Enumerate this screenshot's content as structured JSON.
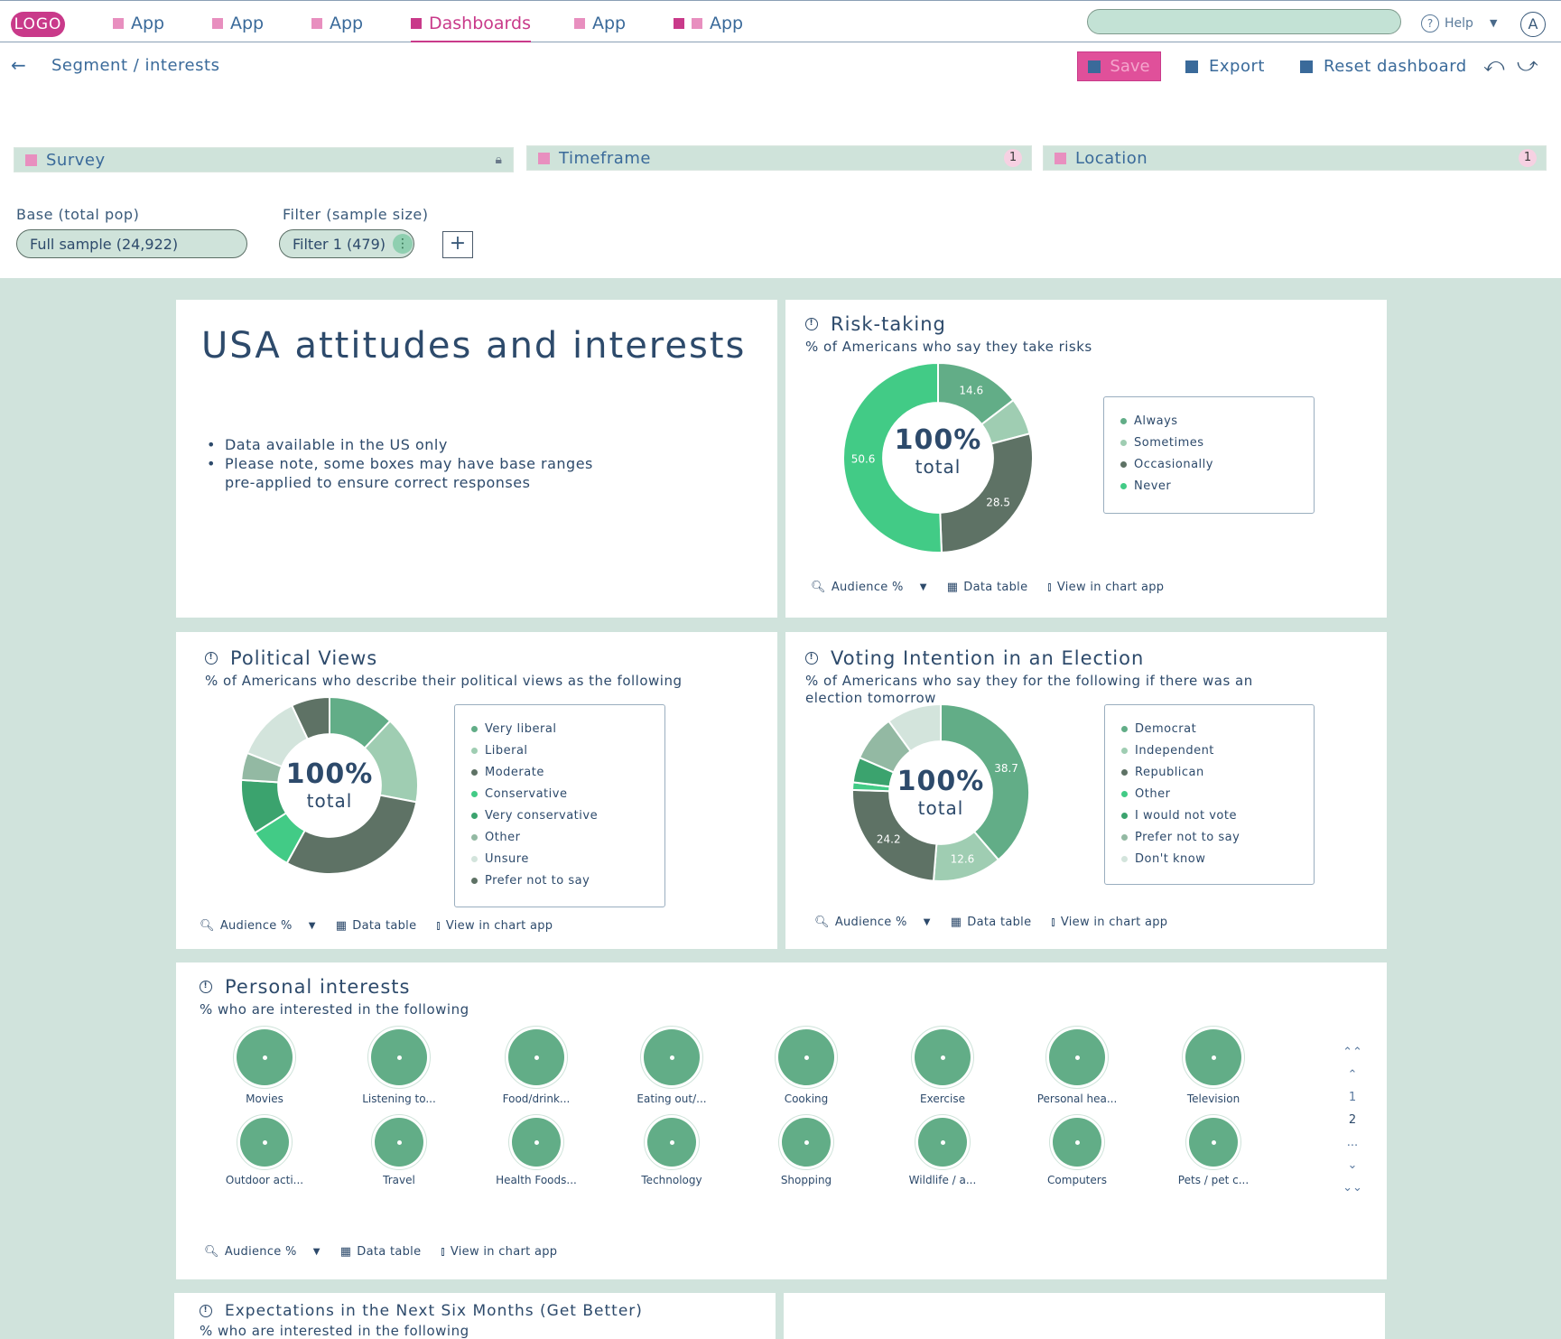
{
  "nav": {
    "logo": "LOGO",
    "items": [
      {
        "label": "App",
        "active": false
      },
      {
        "label": "App",
        "active": false
      },
      {
        "label": "App",
        "active": false
      },
      {
        "label": "Dashboards",
        "active": true
      },
      {
        "label": "App",
        "active": false
      },
      {
        "label": "App",
        "active": false
      }
    ],
    "help": "Help",
    "avatar": "A"
  },
  "header": {
    "breadcrumb": "Segment / interests",
    "save": "Save",
    "export": "Export",
    "reset": "Reset dashboard"
  },
  "filters": {
    "survey": "Survey",
    "timeframe": "Timeframe",
    "timeframe_count": "1",
    "location": "Location",
    "location_count": "1",
    "base_label": "Base (total pop)",
    "base_value": "Full sample (24,922)",
    "filter_label": "Filter (sample size)",
    "filter_value": "Filter 1 (479)",
    "add": "+"
  },
  "intro": {
    "title": "USA attitudes and interests",
    "bullets": [
      "Data available in the US only",
      "Please note, some boxes may have base ranges pre-applied to ensure correct responses"
    ]
  },
  "footer_labels": {
    "audience": "Audience %",
    "data_table": "Data table",
    "chart_app": "View in chart app"
  },
  "donut_center": {
    "big": "100%",
    "small": "total"
  },
  "colors": {
    "accent": "#c93a8a",
    "canvas": "#d0e3dc",
    "green_mid": "#62ad87",
    "green_bright": "#42cb86",
    "green_light": "#9fcdb2",
    "gray_dark": "#5e7265",
    "gray_light": "#d3e4dc"
  },
  "chart_data": [
    {
      "type": "pie",
      "title": "Risk-taking",
      "subtitle": "% of Americans who say they take risks",
      "categories": [
        "Always",
        "Sometimes",
        "Occasionally",
        "Never"
      ],
      "values": [
        14.6,
        6.3,
        28.5,
        50.6
      ],
      "labels": [
        "14.6",
        "",
        "28.5",
        "50.6"
      ],
      "colors": [
        "#62ad87",
        "#9fcdb2",
        "#5e7265",
        "#42cb86"
      ]
    },
    {
      "type": "pie",
      "title": "Political Views",
      "subtitle": "% of Americans who describe their political views as the following",
      "categories": [
        "Very liberal",
        "Liberal",
        "Moderate",
        "Conservative",
        "Very conservative",
        "Other",
        "Unsure",
        "Prefer not to say"
      ],
      "values": [
        12,
        16,
        30,
        8,
        10,
        5,
        12,
        7
      ],
      "labels": [
        "",
        "",
        "",
        "",
        "",
        "",
        "",
        ""
      ],
      "colors": [
        "#62ad87",
        "#9fcdb2",
        "#5e7265",
        "#42cb86",
        "#3ba36e",
        "#93b9a3",
        "#d3e4dc",
        "#5e7265"
      ]
    },
    {
      "type": "pie",
      "title": "Voting Intention in an Election",
      "subtitle": "% of Americans who say they for the following if there was an election tomorrow",
      "categories": [
        "Democrat",
        "Independent",
        "Republican",
        "Other",
        "I would not vote",
        "Prefer not to say",
        "Don't know"
      ],
      "values": [
        38.7,
        12.6,
        24.2,
        1.4,
        4.6,
        8.5,
        10.0
      ],
      "labels": [
        "38.7",
        "12.6",
        "24.2",
        "",
        "",
        "",
        ""
      ],
      "colors": [
        "#62ad87",
        "#9fcdb2",
        "#5e7265",
        "#42cb86",
        "#3ba36e",
        "#93b9a3",
        "#d3e4dc"
      ]
    }
  ],
  "interests": {
    "title": "Personal interests",
    "subtitle": "% who are interested in the following",
    "row1": [
      "Movies",
      "Listening to...",
      "Food/drink...",
      "Eating out/...",
      "Cooking",
      "Exercise",
      "Personal hea...",
      "Television"
    ],
    "row2": [
      "Outdoor acti...",
      "Travel",
      "Health Foods...",
      "Technology",
      "Shopping",
      "Wildlife / a...",
      "Computers",
      "Pets / pet c..."
    ],
    "pages": [
      "1",
      "2",
      "..."
    ]
  },
  "expectations": {
    "title": "Expectations in the Next Six Months (Get Better)",
    "subtitle": "% who are interested in the following"
  }
}
